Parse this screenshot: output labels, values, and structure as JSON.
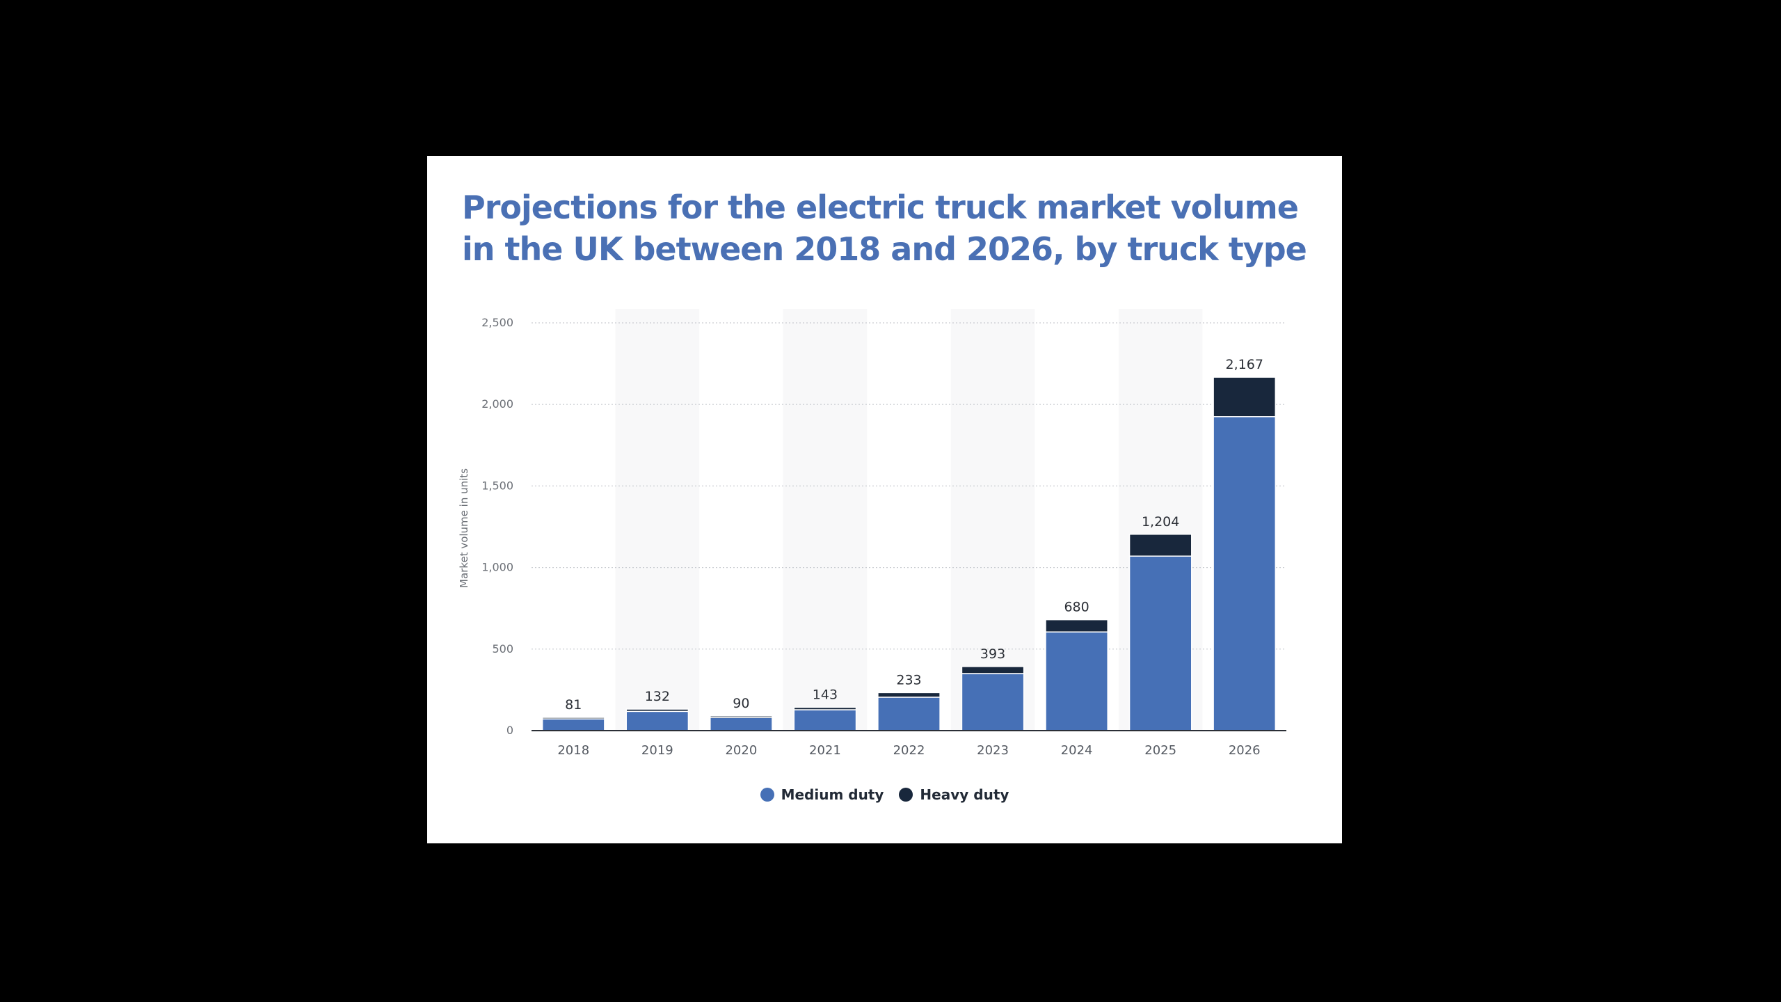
{
  "chart_data": {
    "type": "bar",
    "stacked": true,
    "title": "Projections for the electric truck market volume in the UK between 2018 and 2026, by truck type",
    "xlabel": "",
    "ylabel": "Market volume in units",
    "categories": [
      "2018",
      "2019",
      "2020",
      "2021",
      "2022",
      "2023",
      "2024",
      "2025",
      "2026"
    ],
    "series": [
      {
        "name": "Medium duty",
        "color": "#4670b6",
        "values": [
          72,
          118,
          80,
          128,
          205,
          350,
          605,
          1070,
          1925
        ]
      },
      {
        "name": "Heavy duty",
        "color": "#18273c",
        "values": [
          9,
          14,
          10,
          15,
          28,
          43,
          75,
          134,
          242
        ]
      }
    ],
    "totals": [
      "81",
      "132",
      "90",
      "143",
      "233",
      "393",
      "680",
      "1,204",
      "2,167"
    ],
    "ylim": [
      0,
      2500
    ],
    "yticks": [
      0,
      500,
      1000,
      1500,
      2000,
      2500
    ],
    "ytick_labels": [
      "0",
      "500",
      "1,000",
      "1,500",
      "2,000",
      "2,500"
    ],
    "grid": true,
    "legend_position": "bottom-center"
  }
}
